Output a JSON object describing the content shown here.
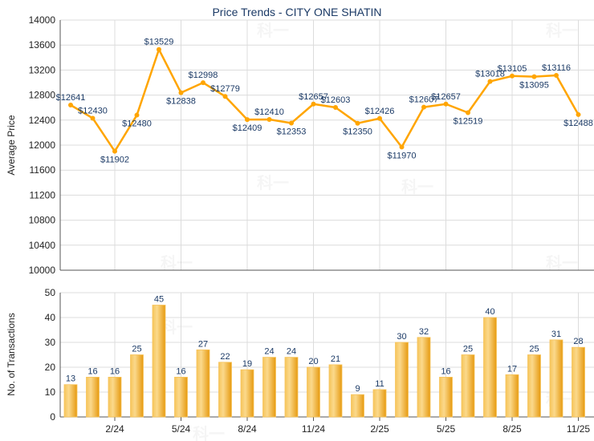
{
  "chart_data": [
    {
      "type": "line",
      "title": "Price Trends - CITY ONE SHATIN",
      "xlabel": "",
      "ylabel": "Average Price",
      "ylim": [
        10000,
        14000
      ],
      "yticks": [
        10000,
        10400,
        10800,
        11200,
        11600,
        12000,
        12400,
        12800,
        13200,
        13600,
        14000
      ],
      "x": [
        "12/23",
        "1/24",
        "2/24",
        "3/24",
        "4/24",
        "5/24",
        "6/24",
        "7/24",
        "8/24",
        "9/24",
        "10/24",
        "11/24",
        "12/24",
        "1/25",
        "2/25",
        "3/25",
        "4/25",
        "5/25",
        "6/25",
        "7/25",
        "8/25",
        "9/25",
        "10/25",
        "11/25"
      ],
      "values": [
        12641,
        12430,
        11902,
        12480,
        13529,
        12838,
        12998,
        12779,
        12409,
        12410,
        12353,
        12657,
        12603,
        12350,
        12426,
        11970,
        12607,
        12657,
        12519,
        13018,
        13105,
        13095,
        13116,
        12488
      ],
      "value_prefix": "$",
      "color": "#ffa500",
      "grid": true
    },
    {
      "type": "bar",
      "xlabel": "",
      "ylabel": "No. of Transactions",
      "ylim": [
        0,
        50
      ],
      "yticks": [
        0,
        10,
        20,
        30,
        40,
        50
      ],
      "x": [
        "12/23",
        "1/24",
        "2/24",
        "3/24",
        "4/24",
        "5/24",
        "6/24",
        "7/24",
        "8/24",
        "9/24",
        "10/24",
        "11/24",
        "12/24",
        "1/25",
        "2/25",
        "3/25",
        "4/25",
        "5/25",
        "6/25",
        "7/25",
        "8/25",
        "9/25",
        "10/25",
        "11/25"
      ],
      "values": [
        13,
        16,
        16,
        25,
        45,
        16,
        27,
        22,
        19,
        24,
        24,
        20,
        21,
        9,
        11,
        30,
        32,
        16,
        25,
        40,
        17,
        25,
        31,
        28
      ],
      "color": "#f2a91f",
      "grid": true
    }
  ],
  "xtick_labels": [
    "2/24",
    "5/24",
    "8/24",
    "11/24",
    "2/25",
    "5/25",
    "8/25",
    "11/25"
  ],
  "watermark": "科一"
}
